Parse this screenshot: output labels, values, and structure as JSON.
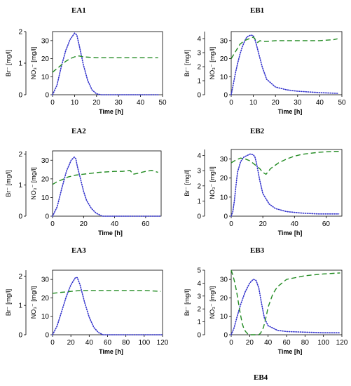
{
  "chart_data": [
    {
      "id": "EA1",
      "type": "line",
      "title": "EA1",
      "xlabel": "Time [h]",
      "ylabel_left": "Br⁻ [mg/l]",
      "ylabel_inner": "NO₃⁻ [mg/l]",
      "xlim": [
        0,
        50
      ],
      "xticks": [
        0,
        10,
        20,
        30,
        40,
        50
      ],
      "ylim_left": [
        0,
        2
      ],
      "yticks_left": [
        0,
        1,
        2
      ],
      "ylim_right": [
        0,
        35
      ],
      "yticks_right": [
        0,
        10,
        20,
        30
      ],
      "series": [
        {
          "style": "dotted",
          "color": "#3333cc",
          "axis": "left",
          "x": [
            0,
            2,
            4,
            6,
            8,
            10,
            11,
            12,
            14,
            16,
            18,
            20,
            22,
            48
          ],
          "y": [
            0,
            0.3,
            0.9,
            1.4,
            1.75,
            1.95,
            1.9,
            1.6,
            0.95,
            0.45,
            0.15,
            0.03,
            0,
            0
          ]
        },
        {
          "style": "dashed",
          "color": "#228b22",
          "axis": "right",
          "x": [
            0,
            2,
            4,
            6,
            8,
            10,
            12,
            14,
            20,
            30,
            48
          ],
          "y": [
            12.5,
            14.5,
            16.5,
            18.5,
            20,
            21,
            21.5,
            21,
            20.5,
            20.5,
            20.5
          ]
        }
      ]
    },
    {
      "id": "EB1",
      "type": "line",
      "title": "EB1",
      "xlabel": "Time [h]",
      "ylabel_left": "Br⁻ [mg/l]",
      "ylabel_inner": "NO₃⁻ [mg/l]",
      "xlim": [
        0,
        50
      ],
      "xticks": [
        0,
        10,
        20,
        30,
        40,
        50
      ],
      "ylim_left": [
        0,
        4.5
      ],
      "yticks_left": [
        0,
        1,
        2,
        3,
        4
      ],
      "ylim_right": [
        0,
        35
      ],
      "yticks_right": [
        0,
        10,
        20,
        30
      ],
      "series": [
        {
          "style": "dotted",
          "color": "#3333cc",
          "axis": "left",
          "x": [
            0,
            1,
            2,
            3,
            4,
            5,
            6,
            7,
            8,
            9,
            10,
            11,
            12,
            14,
            16,
            20,
            25,
            30,
            40,
            48
          ],
          "y": [
            0,
            0.8,
            1.6,
            2.3,
            2.9,
            3.4,
            3.8,
            4.1,
            4.2,
            4.25,
            4.2,
            3.8,
            3.2,
            2.0,
            1.1,
            0.55,
            0.35,
            0.25,
            0.15,
            0.1
          ]
        },
        {
          "style": "dashed",
          "color": "#228b22",
          "axis": "right",
          "x": [
            0,
            2,
            4,
            6,
            8,
            10,
            11,
            12,
            13,
            14,
            16,
            20,
            30,
            40,
            46,
            48
          ],
          "y": [
            20,
            24,
            28,
            30,
            31,
            32,
            30.5,
            29,
            30,
            29.5,
            29.5,
            30,
            30,
            30,
            30.5,
            31
          ]
        }
      ]
    },
    {
      "id": "EA2",
      "type": "line",
      "title": "EA2",
      "xlabel": "Time [h]",
      "ylabel_left": "Br⁻ [mg/l]",
      "ylabel_inner": "NO₃⁻ [mg/l]",
      "xlim": [
        0,
        70
      ],
      "xticks": [
        0,
        20,
        40,
        60
      ],
      "ylim_left": [
        0,
        2.1
      ],
      "yticks_left": [
        0,
        1,
        2
      ],
      "ylim_right": [
        0,
        35
      ],
      "yticks_right": [
        0,
        10,
        20,
        30
      ],
      "series": [
        {
          "style": "dotted",
          "color": "#3333cc",
          "axis": "left",
          "x": [
            0,
            3,
            6,
            9,
            12,
            14,
            15,
            16,
            18,
            20,
            22,
            25,
            28,
            32,
            70
          ],
          "y": [
            0,
            0.3,
            0.9,
            1.45,
            1.8,
            1.9,
            1.85,
            1.6,
            1.2,
            0.8,
            0.5,
            0.25,
            0.1,
            0,
            0
          ]
        },
        {
          "style": "dashed",
          "color": "#228b22",
          "axis": "right",
          "x": [
            0,
            3,
            6,
            10,
            15,
            20,
            30,
            40,
            45,
            50,
            52,
            55,
            60,
            64,
            68
          ],
          "y": [
            17,
            18.5,
            19.5,
            21,
            22,
            22.5,
            23.5,
            24,
            24,
            24.5,
            22.5,
            23,
            24,
            24.5,
            23.5
          ]
        }
      ]
    },
    {
      "id": "EB2",
      "type": "line",
      "title": "EB2",
      "xlabel": "Time [h]",
      "ylabel_left": "Br⁻ [mg/l]",
      "ylabel_inner": "NO₃⁻ [mg/l]",
      "xlim": [
        0,
        70
      ],
      "xticks": [
        0,
        20,
        40,
        60
      ],
      "ylim_left": [
        0,
        4.4
      ],
      "yticks_left": [
        0,
        1,
        2,
        3,
        4
      ],
      "ylim_right": [
        0,
        35
      ],
      "yticks_right": [
        0,
        10,
        20,
        30
      ],
      "series": [
        {
          "style": "dotted",
          "color": "#3333cc",
          "axis": "left",
          "x": [
            0,
            1,
            2,
            3,
            4,
            6,
            8,
            10,
            12,
            14,
            15,
            16,
            18,
            20,
            24,
            28,
            35,
            45,
            55,
            68
          ],
          "y": [
            0,
            0.3,
            1.0,
            2.0,
            2.9,
            3.6,
            3.9,
            4.0,
            4.1,
            4.05,
            3.9,
            3.5,
            2.4,
            1.5,
            0.8,
            0.5,
            0.3,
            0.2,
            0.15,
            0.15
          ]
        },
        {
          "style": "dashed",
          "color": "#228b22",
          "axis": "right",
          "x": [
            0,
            3,
            6,
            9,
            12,
            15,
            18,
            20,
            22,
            25,
            30,
            35,
            40,
            45,
            50,
            55,
            60,
            65,
            68
          ],
          "y": [
            28,
            29.5,
            30.5,
            30,
            29,
            27,
            25,
            23,
            22,
            25,
            28,
            30,
            31.5,
            32.5,
            33,
            33.5,
            33.8,
            34,
            34
          ]
        }
      ]
    },
    {
      "id": "EA3",
      "type": "line",
      "title": "EA3",
      "xlabel": "Time [h]",
      "ylabel_left": "Br⁻ [mg/l]",
      "ylabel_inner": "NO₃⁻ [mg/l]",
      "xlim": [
        0,
        120
      ],
      "xticks": [
        0,
        20,
        40,
        60,
        80,
        100,
        120
      ],
      "ylim_left": [
        0,
        2.2
      ],
      "yticks_left": [
        0,
        1,
        2
      ],
      "ylim_right": [
        0,
        35
      ],
      "yticks_right": [
        0,
        10,
        20,
        30
      ],
      "series": [
        {
          "style": "dotted",
          "color": "#3333cc",
          "axis": "left",
          "x": [
            0,
            5,
            10,
            15,
            20,
            25,
            27,
            30,
            35,
            40,
            45,
            50,
            55,
            120
          ],
          "y": [
            0,
            0.3,
            0.8,
            1.3,
            1.7,
            1.95,
            1.95,
            1.7,
            1.1,
            0.6,
            0.25,
            0.08,
            0,
            0
          ]
        },
        {
          "style": "dashed",
          "color": "#228b22",
          "axis": "right",
          "x": [
            0,
            10,
            20,
            30,
            40,
            60,
            80,
            100,
            118
          ],
          "y": [
            22.5,
            23,
            23.5,
            24,
            24,
            24,
            24,
            24,
            23.5
          ]
        }
      ]
    },
    {
      "id": "EB3",
      "type": "line",
      "title": "EB3",
      "xlabel": "Time [h]",
      "ylabel_left": "Br⁻ [mg/l]",
      "ylabel_inner": "NO₃⁻ [mg/l]",
      "xlim": [
        0,
        120
      ],
      "xticks": [
        0,
        20,
        40,
        60,
        80,
        100,
        120
      ],
      "ylim_left": [
        0,
        5
      ],
      "yticks_left": [
        0,
        1,
        2,
        3,
        4,
        5
      ],
      "ylim_right": [
        0,
        35
      ],
      "yticks_right": [
        0,
        10,
        20,
        30
      ],
      "series": [
        {
          "style": "dotted",
          "color": "#3333cc",
          "axis": "left",
          "x": [
            0,
            3,
            6,
            10,
            15,
            20,
            24,
            27,
            30,
            33,
            36,
            40,
            50,
            60,
            80,
            100,
            118
          ],
          "y": [
            0,
            0.5,
            1.3,
            2.3,
            3.3,
            4.0,
            4.3,
            4.2,
            3.6,
            2.4,
            1.3,
            0.7,
            0.35,
            0.25,
            0.2,
            0.15,
            0.15
          ]
        },
        {
          "style": "dashed",
          "color": "#228b22",
          "axis": "right",
          "x": [
            0,
            2,
            4,
            6,
            8,
            10,
            12,
            14,
            16,
            18,
            20,
            25,
            30,
            32,
            35,
            38,
            40,
            45,
            50,
            55,
            60,
            70,
            80,
            100,
            118
          ],
          "y": [
            35,
            32,
            28,
            23,
            17,
            11,
            6,
            3,
            1.5,
            0.5,
            0,
            0,
            0,
            1,
            4,
            10,
            15,
            22,
            26,
            28,
            30,
            31,
            32,
            33,
            33.5
          ]
        }
      ]
    }
  ],
  "footer": {
    "label": "EB4"
  }
}
